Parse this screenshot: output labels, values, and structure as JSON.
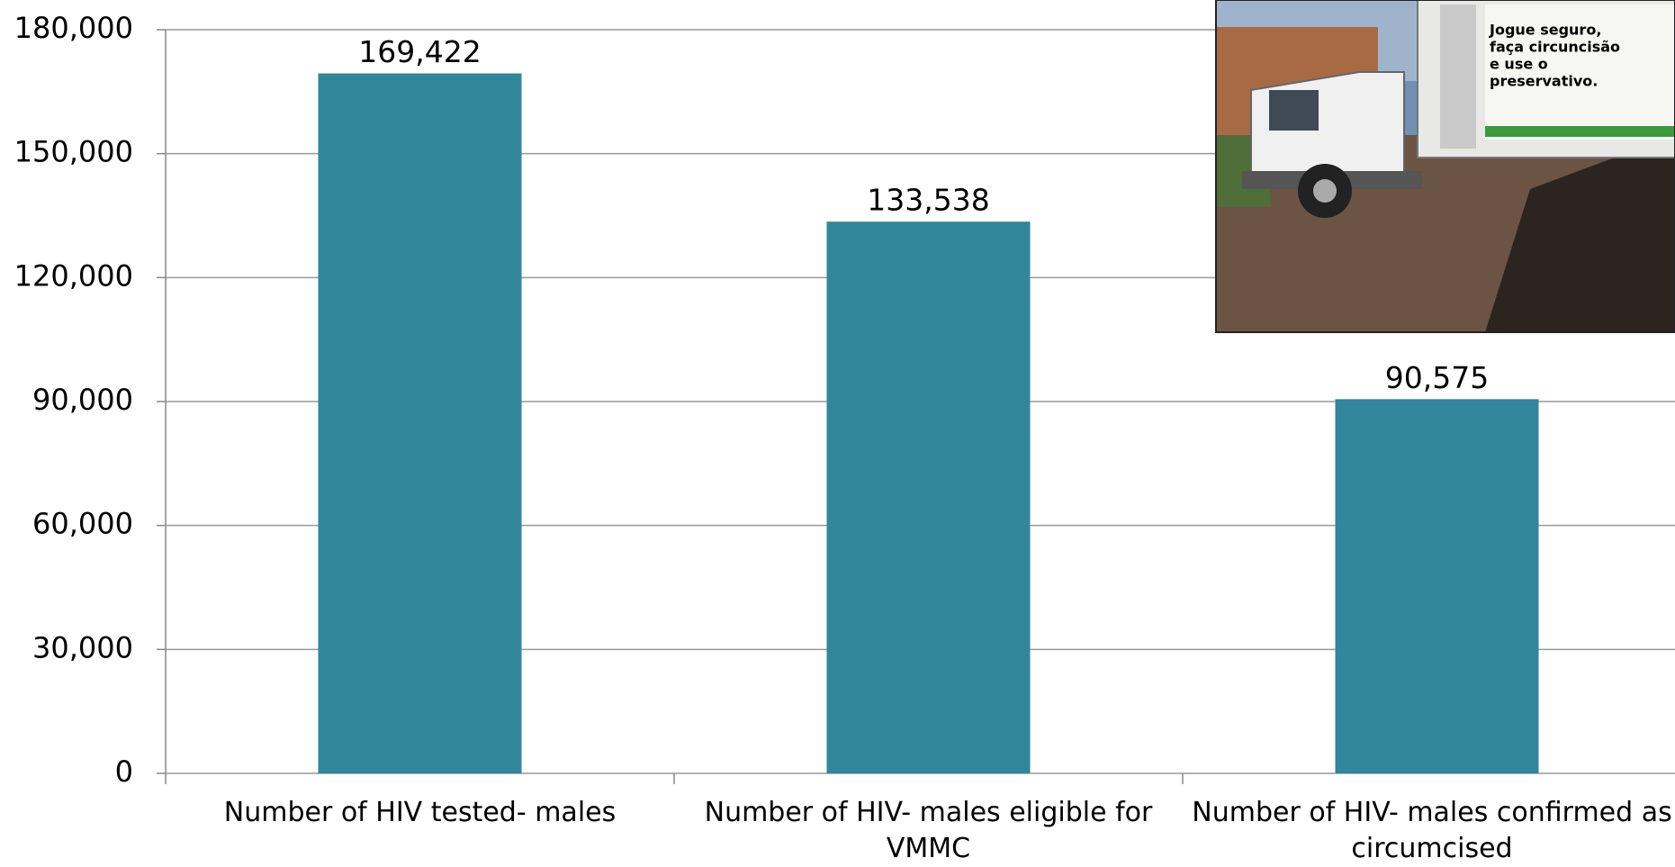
{
  "chart_data": {
    "type": "bar",
    "categories": [
      "Number of HIV tested- males",
      "Number of HIV- males eligible for VMMC",
      "Number of HIV- males confirmed as circumcised"
    ],
    "values": [
      169422,
      133538,
      90575
    ],
    "value_labels": [
      "169,422",
      "133,538",
      "90,575"
    ],
    "color": "#31869b",
    "ylim": [
      0,
      180000
    ],
    "yticks": [
      0,
      {
        "value": 30000,
        "label": "30,000"
      },
      {
        "value": 60000,
        "label": "60,000"
      },
      {
        "value": 90000,
        "label": "90,000"
      },
      {
        "value": 120000,
        "label": "120,000"
      },
      {
        "value": 150000,
        "label": "150,000"
      },
      {
        "value": 180000,
        "label": "180,000"
      }
    ],
    "grid": true,
    "annotations": [
      "Jogue seguro,",
      "faça circuncisão",
      "e use o",
      "preservativo."
    ]
  }
}
